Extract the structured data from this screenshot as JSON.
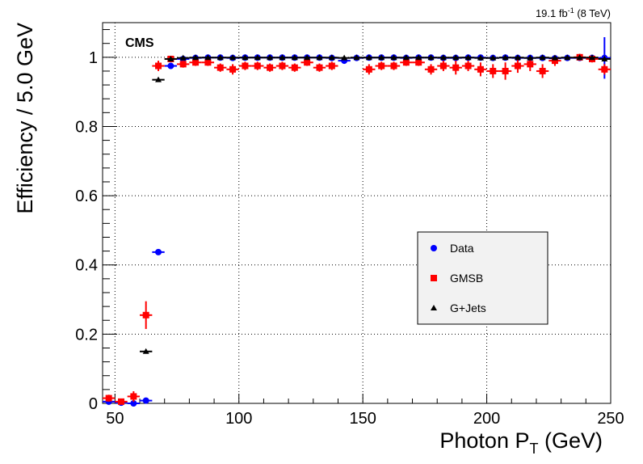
{
  "chart_data": {
    "type": "scatter",
    "xlabel_main": "Photon P",
    "xlabel_sub": "T",
    "xlabel_unit": " (GeV)",
    "ylabel": "Efficiency / 5.0 GeV",
    "lumi_main": "19.1 fb",
    "lumi_sup": "-1",
    "lumi_energy": " (8 TeV)",
    "experiment": "CMS",
    "xlim": [
      45,
      250
    ],
    "ylim": [
      0,
      1.1
    ],
    "x_ticks": [
      50,
      100,
      150,
      200,
      250
    ],
    "y_ticks": [
      0,
      0.2,
      0.4,
      0.6,
      0.8,
      1
    ],
    "grid": true,
    "legend_placement": "center-right",
    "series": [
      {
        "name": "Data",
        "marker": "circle",
        "color": "#0000ff",
        "x": [
          47.5,
          52.5,
          57.5,
          62.5,
          67.5,
          72.5,
          77.5,
          82.5,
          87.5,
          92.5,
          97.5,
          102.5,
          107.5,
          112.5,
          117.5,
          122.5,
          127.5,
          132.5,
          137.5,
          142.5,
          147.5,
          152.5,
          157.5,
          162.5,
          167.5,
          172.5,
          177.5,
          182.5,
          187.5,
          192.5,
          197.5,
          202.5,
          207.5,
          212.5,
          217.5,
          222.5,
          227.5,
          232.5,
          237.5,
          242.5,
          247.5
        ],
        "y": [
          0.005,
          0.002,
          0.0,
          0.008,
          0.437,
          0.975,
          0.995,
          0.998,
          0.999,
          0.999,
          0.998,
          0.999,
          0.999,
          0.999,
          0.999,
          0.999,
          0.999,
          0.999,
          0.998,
          0.99,
          0.998,
          0.999,
          0.999,
          0.999,
          0.998,
          0.999,
          0.999,
          0.998,
          0.998,
          0.999,
          0.999,
          0.998,
          0.999,
          0.998,
          0.998,
          0.998,
          0.997,
          0.998,
          0.998,
          0.998,
          0.998
        ],
        "yerr": [
          0.003,
          0.002,
          0.002,
          0.003,
          0.006,
          0.004,
          0.002,
          0.001,
          0.001,
          0.001,
          0.001,
          0.001,
          0.001,
          0.001,
          0.001,
          0.001,
          0.001,
          0.001,
          0.001,
          0.003,
          0.001,
          0.001,
          0.001,
          0.001,
          0.001,
          0.001,
          0.001,
          0.001,
          0.002,
          0.002,
          0.002,
          0.002,
          0.002,
          0.002,
          0.003,
          0.003,
          0.003,
          0.004,
          0.004,
          0.005,
          0.06
        ]
      },
      {
        "name": "GMSB",
        "marker": "square",
        "color": "#ff0000",
        "x": [
          47.5,
          52.5,
          57.5,
          62.5,
          67.5,
          72.5,
          77.5,
          82.5,
          87.5,
          92.5,
          97.5,
          102.5,
          107.5,
          112.5,
          117.5,
          122.5,
          127.5,
          132.5,
          137.5,
          152.5,
          157.5,
          162.5,
          167.5,
          172.5,
          177.5,
          182.5,
          187.5,
          192.5,
          197.5,
          202.5,
          207.5,
          212.5,
          217.5,
          222.5,
          227.5,
          237.5,
          242.5,
          247.5
        ],
        "y": [
          0.015,
          0.005,
          0.02,
          0.255,
          0.975,
          0.995,
          0.98,
          0.985,
          0.985,
          0.97,
          0.965,
          0.975,
          0.975,
          0.97,
          0.975,
          0.97,
          0.985,
          0.97,
          0.975,
          0.965,
          0.975,
          0.975,
          0.985,
          0.985,
          0.965,
          0.975,
          0.97,
          0.975,
          0.965,
          0.96,
          0.96,
          0.975,
          0.98,
          0.96,
          0.99,
          1.0,
          0.995,
          0.965
        ],
        "yerr": [
          0.01,
          0.006,
          0.015,
          0.04,
          0.015,
          0.005,
          0.01,
          0.01,
          0.01,
          0.012,
          0.015,
          0.012,
          0.012,
          0.012,
          0.012,
          0.012,
          0.01,
          0.012,
          0.012,
          0.015,
          0.012,
          0.012,
          0.01,
          0.01,
          0.015,
          0.015,
          0.02,
          0.015,
          0.02,
          0.02,
          0.025,
          0.02,
          0.02,
          0.02,
          0.015,
          0.01,
          0.01,
          0.015
        ]
      },
      {
        "name": "G+Jets",
        "marker": "triangle",
        "color": "#000000",
        "x": [
          62.5,
          67.5,
          72.5,
          77.5,
          82.5,
          87.5,
          92.5,
          97.5,
          102.5,
          107.5,
          112.5,
          117.5,
          122.5,
          127.5,
          132.5,
          137.5,
          142.5,
          147.5,
          152.5,
          157.5,
          162.5,
          167.5,
          172.5,
          177.5,
          182.5,
          187.5,
          192.5,
          197.5,
          202.5,
          207.5,
          212.5,
          217.5,
          222.5,
          227.5,
          232.5,
          237.5,
          242.5,
          247.5
        ],
        "y": [
          0.15,
          0.935,
          0.995,
          0.998,
          0.999,
          0.999,
          0.999,
          0.999,
          0.999,
          0.999,
          0.999,
          0.999,
          0.999,
          0.999,
          0.999,
          0.999,
          0.998,
          0.999,
          0.999,
          0.999,
          0.999,
          0.999,
          0.999,
          0.999,
          0.999,
          0.999,
          0.999,
          0.998,
          0.998,
          0.999,
          0.999,
          0.998,
          0.999,
          0.998,
          0.999,
          0.999,
          0.999,
          0.995
        ],
        "yerr": [
          0.005,
          0.005,
          0.002,
          0.001,
          0.001,
          0.001,
          0.001,
          0.001,
          0.001,
          0.001,
          0.001,
          0.001,
          0.001,
          0.001,
          0.001,
          0.001,
          0.001,
          0.001,
          0.001,
          0.001,
          0.001,
          0.001,
          0.001,
          0.001,
          0.001,
          0.001,
          0.001,
          0.001,
          0.001,
          0.001,
          0.001,
          0.001,
          0.001,
          0.001,
          0.001,
          0.001,
          0.001,
          0.003
        ]
      }
    ]
  }
}
